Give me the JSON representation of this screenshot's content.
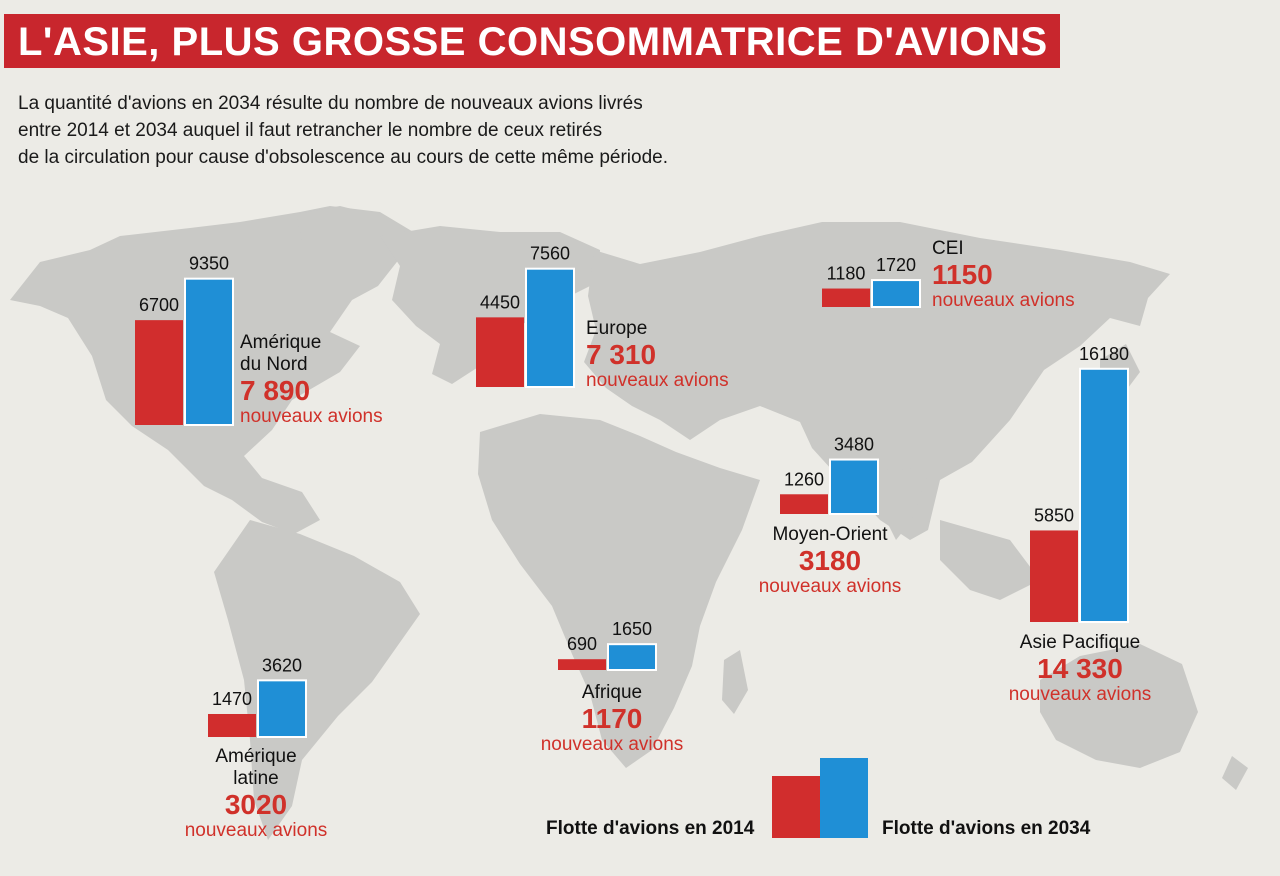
{
  "title": "L'ASIE, PLUS GROSSE CONSOMMATRICE D'AVIONS",
  "intro_lines": [
    "La quantité d'avions en 2034 résulte du nombre de nouveaux avions livrés",
    "entre 2014 et 2034 auquel il faut retrancher le nombre de ceux retirés",
    "de la circulation pour cause d'obsolescence au cours de cette même période."
  ],
  "colors": {
    "fleet_2014": "#d12d2d",
    "fleet_2034": "#1f8fd6",
    "accent_text": "#d0312a",
    "map": "#c9c9c6",
    "title_bar": "#c8262d"
  },
  "chart_data": {
    "type": "bar",
    "series_names": [
      "Flotte d'avions en 2014",
      "Flotte d'avions en 2034"
    ],
    "regions": [
      {
        "name": "Amérique du Nord",
        "name_lines": [
          "Amérique",
          "du Nord"
        ],
        "fleet_2014": 6700,
        "fleet_2034": 9350,
        "new_aircraft": "7 890",
        "new_label": "nouveaux avions"
      },
      {
        "name": "Europe",
        "name_lines": [
          "Europe"
        ],
        "fleet_2014": 4450,
        "fleet_2034": 7560,
        "new_aircraft": "7 310",
        "new_label": "nouveaux avions"
      },
      {
        "name": "CEI",
        "name_lines": [
          "CEI"
        ],
        "fleet_2014": 1180,
        "fleet_2034": 1720,
        "new_aircraft": "1150",
        "new_label": "nouveaux avions"
      },
      {
        "name": "Moyen-Orient",
        "name_lines": [
          "Moyen-Orient"
        ],
        "fleet_2014": 1260,
        "fleet_2034": 3480,
        "new_aircraft": "3180",
        "new_label": "nouveaux avions"
      },
      {
        "name": "Asie Pacifique",
        "name_lines": [
          "Asie Pacifique"
        ],
        "fleet_2014": 5850,
        "fleet_2034": 16180,
        "new_aircraft": "14 330",
        "new_label": "nouveaux avions"
      },
      {
        "name": "Afrique",
        "name_lines": [
          "Afrique"
        ],
        "fleet_2014": 690,
        "fleet_2034": 1650,
        "new_aircraft": "1170",
        "new_label": "nouveaux avions"
      },
      {
        "name": "Amérique latine",
        "name_lines": [
          "Amérique",
          "latine"
        ],
        "fleet_2014": 1470,
        "fleet_2034": 3620,
        "new_aircraft": "3020",
        "new_label": "nouveaux avions"
      }
    ],
    "legend": {
      "label_2014": "Flotte d'avions en 2014",
      "label_2034": "Flotte d'avions en 2034"
    }
  }
}
